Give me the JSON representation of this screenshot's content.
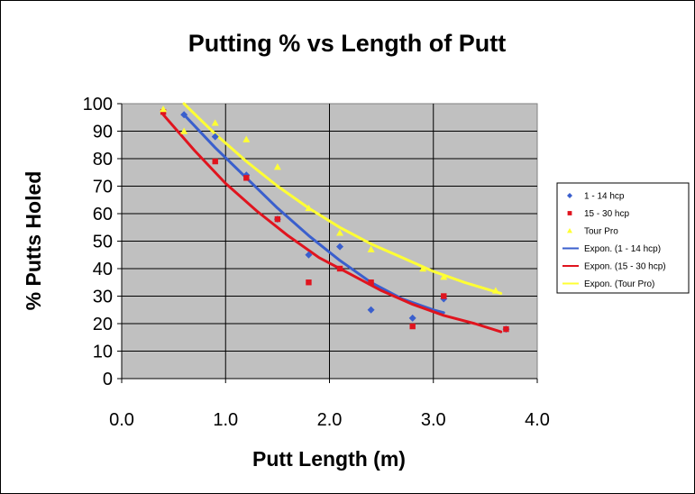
{
  "chart_data": {
    "type": "scatter",
    "title": "Putting % vs Length of Putt",
    "xlabel": "Putt Length (m)",
    "ylabel": "% Putts Holed",
    "xlim": [
      0,
      4
    ],
    "ylim": [
      0,
      100
    ],
    "x_ticks": [
      "0.0",
      "1.0",
      "2.0",
      "3.0",
      "4.0"
    ],
    "y_ticks": [
      "0",
      "10",
      "20",
      "30",
      "40",
      "50",
      "60",
      "70",
      "80",
      "90",
      "100"
    ],
    "grid": true,
    "legend_position": "right",
    "plot_background": "#c0c0c0",
    "series": [
      {
        "name": "1 - 14 hcp",
        "marker": "diamond",
        "color": "#3a5fcd",
        "x": [
          0.6,
          0.9,
          1.2,
          1.5,
          1.8,
          2.1,
          2.4,
          2.8,
          3.1,
          3.7
        ],
        "y": [
          96,
          88,
          74,
          58,
          45,
          48,
          25,
          22,
          29,
          18
        ]
      },
      {
        "name": "15 - 30 hcp",
        "marker": "square",
        "color": "#e0141e",
        "x": [
          0.4,
          0.9,
          1.2,
          1.5,
          1.8,
          2.1,
          2.4,
          2.8,
          3.1,
          3.7
        ],
        "y": [
          97,
          79,
          73,
          58,
          35,
          40,
          35,
          19,
          30,
          18
        ]
      },
      {
        "name": "Tour Pro",
        "marker": "triangle",
        "color": "#ffff33",
        "x": [
          0.4,
          0.6,
          0.9,
          1.2,
          1.5,
          1.8,
          2.1,
          2.4,
          2.9,
          3.1,
          3.6
        ],
        "y": [
          98,
          90,
          93,
          87,
          77,
          62,
          53,
          47,
          40,
          37,
          32
        ]
      }
    ],
    "trendlines": [
      {
        "name": "Expon. (1 - 14 hcp)",
        "color": "#3a5fcd",
        "x": [
          0.6,
          0.9,
          1.2,
          1.5,
          1.8,
          2.1,
          2.4,
          2.7,
          3.0,
          3.1
        ],
        "y": [
          96,
          84,
          73,
          62,
          52,
          43,
          35,
          29,
          25,
          24
        ]
      },
      {
        "name": "Expon. (15 - 30 hcp)",
        "color": "#e0141e",
        "x": [
          0.4,
          0.7,
          1.0,
          1.3,
          1.6,
          1.9,
          2.2,
          2.5,
          2.8,
          3.1,
          3.4,
          3.65
        ],
        "y": [
          96,
          83,
          71,
          61,
          52,
          44,
          38,
          32,
          27,
          23,
          20,
          17
        ]
      },
      {
        "name": "Expon. (Tour Pro)",
        "color": "#ffff33",
        "x": [
          0.6,
          0.9,
          1.2,
          1.5,
          1.8,
          2.1,
          2.4,
          2.7,
          3.0,
          3.3,
          3.65
        ],
        "y": [
          100,
          89,
          79,
          70,
          62,
          55,
          49,
          44,
          39,
          35,
          31
        ]
      }
    ]
  }
}
